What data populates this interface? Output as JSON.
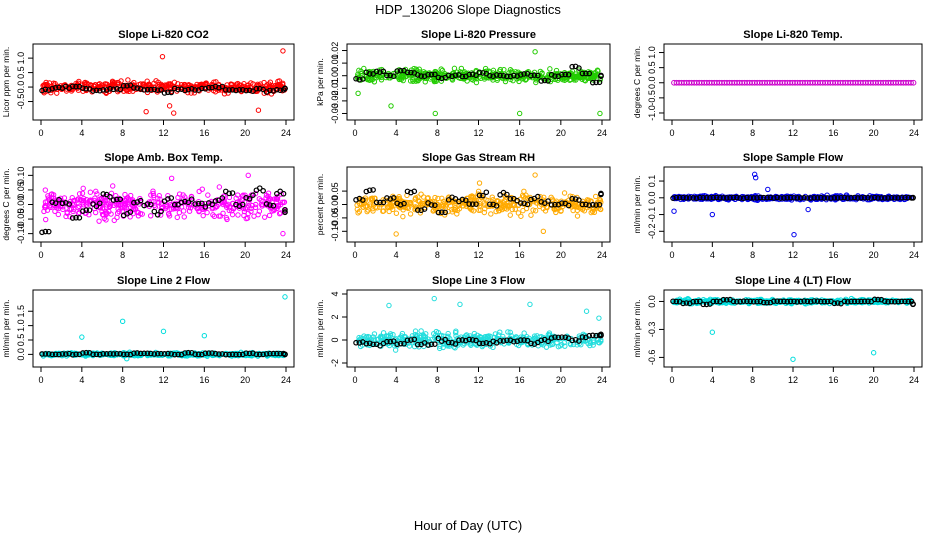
{
  "title": "HDP_130206  Slope Diagnostics",
  "xlabel": "Hour of Day (UTC)",
  "chart_data": [
    {
      "type": "scatter",
      "title": "Slope Li-820 CO2",
      "ylabel": "Licor ppm per min.",
      "color": "#ff0000",
      "xlim": [
        0,
        24
      ],
      "xticks": [
        0,
        4,
        8,
        12,
        16,
        20,
        24
      ],
      "ylim": [
        -1.0,
        1.35
      ],
      "yticks": [
        -0.5,
        0.0,
        0.5,
        1.0
      ],
      "ytick_labels": [
        "-0.5",
        "0.0",
        "0.5",
        "1.0"
      ],
      "main_spread": 0.32,
      "main_center": 0.0,
      "hourly_means": [
        -0.12,
        -0.05,
        0.0,
        0.02,
        -0.05,
        -0.12,
        -0.1,
        -0.08,
        0.05,
        -0.05,
        -0.1,
        -0.08,
        -0.2,
        -0.05,
        -0.1,
        -0.08,
        -0.05,
        0.0,
        -0.1,
        -0.1,
        -0.12,
        -0.08,
        -0.15,
        -0.1,
        -0.05
      ],
      "outliers": [
        [
          11.9,
          1.05
        ],
        [
          23.7,
          1.25
        ],
        [
          10.3,
          -0.85
        ],
        [
          13.0,
          -0.9
        ],
        [
          21.3,
          -0.8
        ],
        [
          12.6,
          -0.65
        ]
      ]
    },
    {
      "type": "scatter",
      "title": "Slope Li-820 Pressure",
      "ylabel": "kPa per min.",
      "color": "#22cc00",
      "xlim": [
        0,
        24
      ],
      "xticks": [
        0,
        4,
        8,
        12,
        16,
        20,
        24
      ],
      "ylim": [
        -0.032,
        0.022
      ],
      "yticks": [
        -0.03,
        -0.02,
        -0.01,
        0.0,
        0.01,
        0.02
      ],
      "ytick_labels": [
        "-0.03",
        "-0.02",
        "-0.01",
        "0.00",
        "0.01",
        "0.02"
      ],
      "main_spread": 0.008,
      "main_center": 0.0,
      "hourly_means": [
        -0.003,
        0.002,
        0.003,
        0.0,
        0.004,
        0.002,
        0.0,
        0.001,
        -0.002,
        0.0,
        0.0,
        0.001,
        0.002,
        0.0,
        0.0,
        0.0,
        0.001,
        0.0,
        -0.004,
        0.0,
        0.001,
        0.007,
        0.001,
        -0.005,
        0.0
      ],
      "outliers": [
        [
          7.8,
          -0.03
        ],
        [
          16.0,
          -0.03
        ],
        [
          23.8,
          -0.03
        ],
        [
          17.5,
          0.019
        ],
        [
          3.5,
          -0.024
        ],
        [
          0.3,
          -0.014
        ]
      ]
    },
    {
      "type": "scatter",
      "title": "Slope Li-820 Temp.",
      "ylabel": "degrees C per min.",
      "color": "#cc00cc",
      "xlim": [
        0,
        24
      ],
      "xticks": [
        0,
        4,
        8,
        12,
        16,
        20,
        24
      ],
      "ylim": [
        -1.1,
        1.15
      ],
      "yticks": [
        -1.0,
        -0.5,
        0.0,
        0.5,
        1.0
      ],
      "ytick_labels": [
        "-1.0",
        "-0.5",
        "0.0",
        "0.5",
        "1.0"
      ],
      "main_spread": 0.0,
      "main_center": 0.0,
      "hourly_means": [],
      "outliers": []
    },
    {
      "type": "scatter",
      "title": "Slope Amb. Box Temp.",
      "ylabel": "degrees C per min.",
      "color": "#ff00ff",
      "xlim": [
        0,
        24
      ],
      "xticks": [
        0,
        4,
        8,
        12,
        16,
        20,
        24
      ],
      "ylim": [
        -0.115,
        0.115
      ],
      "yticks": [
        -0.1,
        -0.05,
        0.0,
        0.05,
        0.1
      ],
      "ytick_labels": [
        "-0.10",
        "-0.05",
        "0.00",
        "0.05",
        "0.10"
      ],
      "main_spread": 0.075,
      "main_center": 0.0,
      "hourly_means": [
        -0.09,
        0.01,
        0.0,
        -0.05,
        -0.02,
        0.0,
        0.03,
        0.02,
        -0.03,
        0.01,
        0.0,
        -0.03,
        0.02,
        0.0,
        0.01,
        0.0,
        0.0,
        0.02,
        0.04,
        0.0,
        0.03,
        0.05,
        0.0,
        0.04,
        -0.02
      ],
      "outliers": [
        [
          23.7,
          -0.1
        ],
        [
          12.8,
          0.09
        ],
        [
          20.3,
          0.1
        ]
      ]
    },
    {
      "type": "scatter",
      "title": "Slope Gas Stream RH",
      "ylabel": "percent per min.",
      "color": "#ffaa00",
      "xlim": [
        0,
        24
      ],
      "xticks": [
        0,
        4,
        8,
        12,
        16,
        20,
        24
      ],
      "ylim": [
        -0.125,
        0.125
      ],
      "yticks": [
        -0.1,
        -0.05,
        0.0,
        0.05
      ],
      "ytick_labels": [
        "-0.10",
        "-0.05",
        "0.00",
        "0.05"
      ],
      "main_spread": 0.06,
      "main_center": 0.0,
      "hourly_means": [
        0.02,
        0.05,
        0.01,
        0.02,
        0.0,
        0.05,
        -0.02,
        0.0,
        -0.03,
        0.02,
        0.02,
        0.0,
        0.04,
        0.0,
        0.04,
        0.02,
        0.0,
        0.02,
        0.01,
        0.0,
        0.0,
        0.02,
        0.0,
        0.0,
        0.04
      ],
      "outliers": [
        [
          4.0,
          -0.11
        ],
        [
          17.5,
          0.11
        ],
        [
          18.3,
          -0.1
        ],
        [
          12.1,
          0.08
        ]
      ]
    },
    {
      "type": "scatter",
      "title": "Slope Sample Flow",
      "ylabel": "ml/min per min.",
      "color": "#0000ee",
      "xlim": [
        0,
        24
      ],
      "xticks": [
        0,
        4,
        8,
        12,
        16,
        20,
        24
      ],
      "ylim": [
        -0.24,
        0.16
      ],
      "yticks": [
        -0.2,
        -0.1,
        0.0,
        0.1
      ],
      "ytick_labels": [
        "-0.2",
        "-0.1",
        "0.0",
        "0.1"
      ],
      "main_spread": 0.02,
      "main_center": 0.0,
      "hourly_means": [
        0.0,
        0.0,
        0.0,
        0.0,
        0.0,
        0.0,
        0.0,
        0.0,
        0.0,
        0.0,
        0.0,
        0.0,
        0.0,
        0.0,
        0.0,
        0.0,
        0.0,
        0.0,
        0.0,
        0.0,
        0.0,
        0.0,
        0.0,
        0.0,
        0.0
      ],
      "outliers": [
        [
          8.2,
          0.14
        ],
        [
          8.3,
          0.12
        ],
        [
          12.1,
          -0.22
        ],
        [
          4.0,
          -0.1
        ],
        [
          0.2,
          -0.08
        ],
        [
          9.5,
          0.05
        ],
        [
          13.5,
          -0.07
        ]
      ]
    },
    {
      "type": "scatter",
      "title": "Slope Line 2 Flow",
      "ylabel": "ml/min per min.",
      "color": "#00dddd",
      "xlim": [
        0,
        24
      ],
      "xticks": [
        0,
        4,
        8,
        12,
        16,
        20,
        24
      ],
      "ylim": [
        -0.3,
        2.1
      ],
      "yticks": [
        0.0,
        0.5,
        1.0,
        1.5
      ],
      "ytick_labels": [
        "0.0",
        "0.5",
        "1.0",
        "1.5"
      ],
      "main_spread": 0.09,
      "main_center": 0.0,
      "hourly_means": [
        0.02,
        0.0,
        0.02,
        0.0,
        0.05,
        0.0,
        0.02,
        0.02,
        0.0,
        0.04,
        0.04,
        0.02,
        0.02,
        0.0,
        0.05,
        0.0,
        0.05,
        0.02,
        0.0,
        0.0,
        0.04,
        0.0,
        0.02,
        0.02,
        0.0
      ],
      "outliers": [
        [
          23.9,
          2.0
        ],
        [
          8.0,
          1.15
        ],
        [
          12.0,
          0.8
        ],
        [
          16.0,
          0.65
        ],
        [
          4.0,
          0.6
        ],
        [
          8.4,
          -0.15
        ]
      ]
    },
    {
      "type": "scatter",
      "title": "Slope Line 3 Flow",
      "ylabel": "ml/min per min.",
      "color": "#22dddd",
      "xlim": [
        0,
        24
      ],
      "xticks": [
        0,
        4,
        8,
        12,
        16,
        20,
        24
      ],
      "ylim": [
        -2.0,
        4.0
      ],
      "yticks": [
        -2,
        0,
        2,
        4
      ],
      "ytick_labels": [
        "-2",
        "0",
        "2",
        "4"
      ],
      "main_spread": 1.1,
      "main_center": 0.0,
      "hourly_means": [
        -0.2,
        -0.3,
        -0.4,
        -0.1,
        -0.3,
        0.0,
        -0.3,
        -0.4,
        0.0,
        -0.3,
        -0.1,
        0.0,
        -0.3,
        -0.2,
        -0.1,
        -0.1,
        0.0,
        -0.3,
        0.0,
        0.2,
        0.3,
        0.0,
        0.3,
        0.4,
        0.4
      ],
      "outliers": [
        [
          7.7,
          3.6
        ],
        [
          3.3,
          3.0
        ],
        [
          10.2,
          3.1
        ],
        [
          17.0,
          3.1
        ],
        [
          22.5,
          2.5
        ],
        [
          23.7,
          1.9
        ]
      ]
    },
    {
      "type": "scatter",
      "title": "Slope Line 4 (LT) Flow",
      "ylabel": "ml/min per min.",
      "color": "#00dddd",
      "xlim": [
        0,
        24
      ],
      "xticks": [
        0,
        4,
        8,
        12,
        16,
        20,
        24
      ],
      "ylim": [
        -0.66,
        0.08
      ],
      "yticks": [
        -0.6,
        -0.3,
        0.0
      ],
      "ytick_labels": [
        "-0.6",
        "-0.3",
        "0.0"
      ],
      "main_spread": 0.035,
      "main_center": 0.0,
      "hourly_means": [
        0.0,
        -0.02,
        0.0,
        -0.03,
        0.0,
        0.02,
        0.0,
        0.0,
        0.0,
        -0.01,
        0.0,
        0.0,
        0.0,
        0.0,
        0.0,
        0.0,
        -0.02,
        0.0,
        0.0,
        0.0,
        0.02,
        0.0,
        0.0,
        0.0,
        -0.03
      ],
      "outliers": [
        [
          12.0,
          -0.62
        ],
        [
          20.0,
          -0.55
        ],
        [
          4.0,
          -0.33
        ]
      ]
    }
  ]
}
